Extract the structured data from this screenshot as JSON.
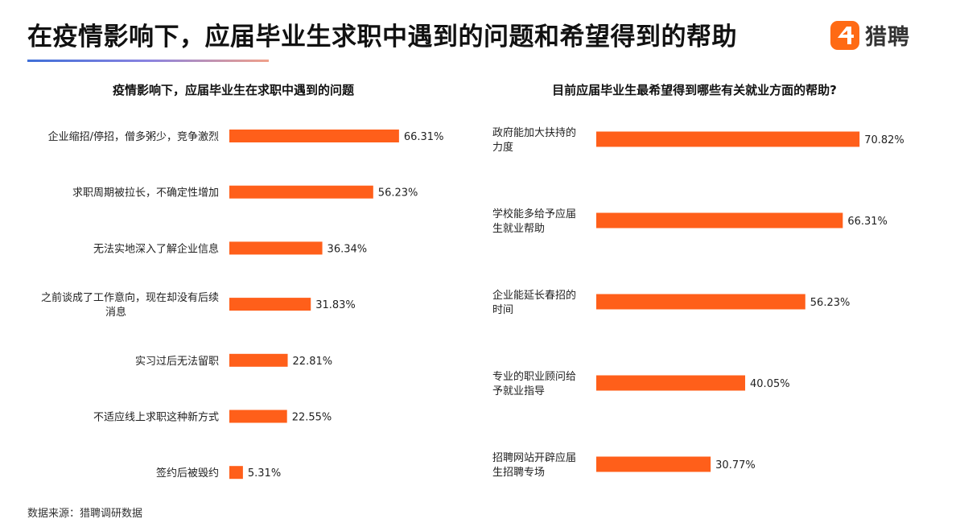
{
  "header": {
    "title": "在疫情影响下，应届毕业生求职中遇到的问题和希望得到的帮助",
    "brand_name": "猎聘",
    "brand_icon": "liepin-logo-icon",
    "accent_color": "#ff5f1a"
  },
  "footer": {
    "source": "数据来源：猎聘调研数据"
  },
  "chart_data": [
    {
      "type": "bar",
      "orientation": "horizontal",
      "title": "疫情影响下，应届毕业生在求职中遇到的问题",
      "categories": [
        "企业缩招/停招，僧多粥少，竞争激烈",
        "求职周期被拉长，不确定性增加",
        "无法实地深入了解企业信息",
        "之前谈成了工作意向，现在却没有后续消息",
        "实习过后无法留职",
        "不适应线上求职这种新方式",
        "签约后被毁约"
      ],
      "category_lines": [
        [
          "企业缩招/停招，僧多粥少，竞争激烈"
        ],
        [
          "求职周期被拉长，不确定性增加"
        ],
        [
          "无法实地深入了解企业信息"
        ],
        [
          "之前谈成了工作意向，现在却没有后续",
          "消息"
        ],
        [
          "实习过后无法留职"
        ],
        [
          "不适应线上求职这种新方式"
        ],
        [
          "签约后被毁约"
        ]
      ],
      "values": [
        66.31,
        56.23,
        36.34,
        31.83,
        22.81,
        22.55,
        5.31
      ],
      "value_labels": [
        "66.31%",
        "56.23%",
        "36.34%",
        "31.83%",
        "22.81%",
        "22.55%",
        "5.31%"
      ],
      "unit": "%",
      "xlim": [
        0,
        100
      ],
      "grid": false,
      "legend": false,
      "color": "#ff5f1a"
    },
    {
      "type": "bar",
      "orientation": "horizontal",
      "title": "目前应届毕业生最希望得到哪些有关就业方面的帮助?",
      "categories": [
        "政府能加大扶持的力度",
        "学校能多给予应届生就业帮助",
        "企业能延长春招的时间",
        "专业的职业顾问给予就业指导",
        "招聘网站开辟应届生招聘专场"
      ],
      "category_lines": [
        [
          "政府能加大扶持的",
          "力度"
        ],
        [
          "学校能多给予应届",
          "生就业帮助"
        ],
        [
          "企业能延长春招的",
          "时间"
        ],
        [
          "专业的职业顾问给",
          "予就业指导"
        ],
        [
          "招聘网站开辟应届",
          "生招聘专场"
        ]
      ],
      "values": [
        70.82,
        66.31,
        56.23,
        40.05,
        30.77
      ],
      "value_labels": [
        "70.82%",
        "66.31%",
        "56.23%",
        "40.05%",
        "30.77%"
      ],
      "unit": "%",
      "xlim": [
        0,
        100
      ],
      "grid": false,
      "legend": false,
      "color": "#ff5f1a"
    }
  ]
}
